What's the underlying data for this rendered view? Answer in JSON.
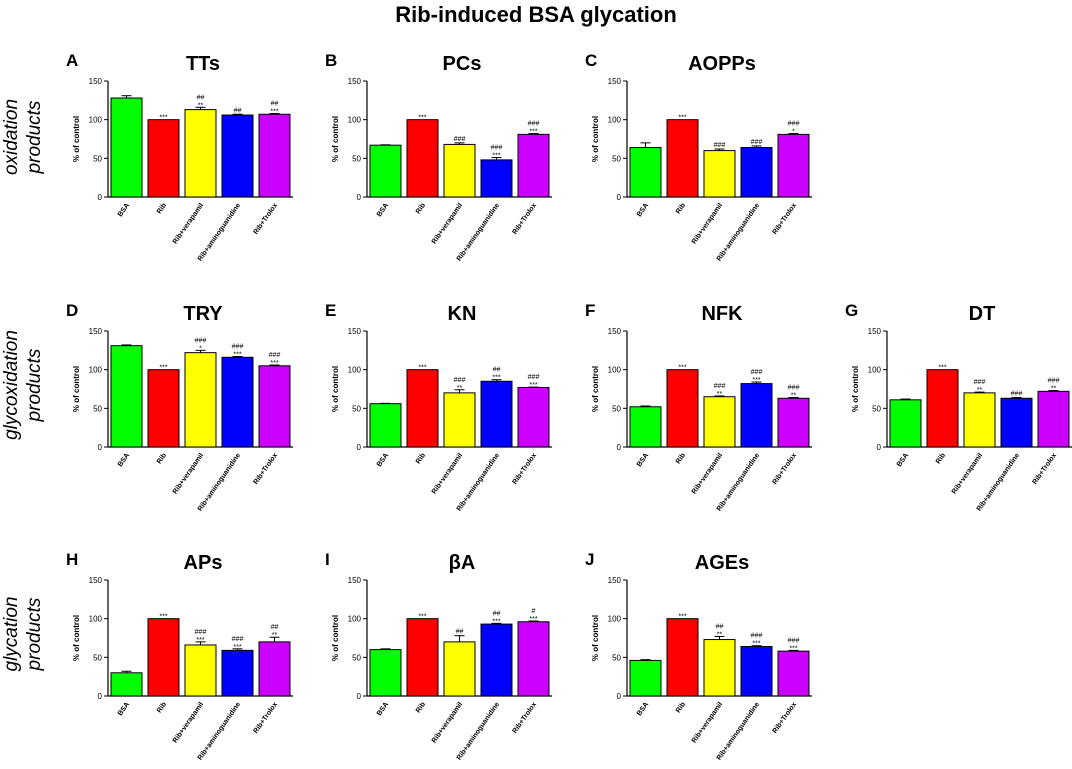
{
  "figure_title": "Rib-induced BSA glycation",
  "row_labels": [
    {
      "line1": "oxidation",
      "line2": "products"
    },
    {
      "line1": "glycoxidation",
      "line2": "products"
    },
    {
      "line1": "glycation",
      "line2": "products"
    }
  ],
  "colors": {
    "BSA": "#00ff00",
    "Rib": "#ff0000",
    "Rib+verapamil": "#ffff00",
    "Rib+aminoguanidine": "#0000ff",
    "Rib+Trolox": "#cc00ff"
  },
  "chart_data": [
    {
      "type": "bar",
      "letter": "A",
      "title": "TTs",
      "ylabel": "% of control",
      "ylim": [
        0,
        150
      ],
      "yticks": [
        0,
        50,
        100,
        150
      ],
      "categories": [
        "BSA",
        "Rib",
        "Rib+verapamil",
        "Rib+aminoguanidine",
        "Rib+Trolox"
      ],
      "values": [
        128,
        100,
        113,
        106,
        107
      ],
      "errors": [
        3,
        0,
        3,
        1,
        1
      ],
      "sig_top": [
        "",
        "",
        "##",
        "##",
        "##"
      ],
      "sig_bottom": [
        "",
        "***",
        "**",
        "",
        "***"
      ]
    },
    {
      "type": "bar",
      "letter": "B",
      "title": "PCs",
      "ylabel": "% of control",
      "ylim": [
        0,
        150
      ],
      "yticks": [
        0,
        50,
        100,
        150
      ],
      "categories": [
        "BSA",
        "Rib",
        "Rib+verapamil",
        "Rib+aminoguanidine",
        "Rib+Trolox"
      ],
      "values": [
        67,
        100,
        68,
        48,
        81
      ],
      "errors": [
        0.5,
        0,
        2,
        3,
        1
      ],
      "sig_top": [
        "",
        "",
        "###",
        "###",
        "###"
      ],
      "sig_bottom": [
        "",
        "***",
        "",
        "***",
        "***"
      ]
    },
    {
      "type": "bar",
      "letter": "C",
      "title": "AOPPs",
      "ylabel": "% of control",
      "ylim": [
        0,
        150
      ],
      "yticks": [
        0,
        50,
        100,
        150
      ],
      "categories": [
        "BSA",
        "Rib",
        "Rib+verapamil",
        "Rib+aminoguanidine",
        "Rib+Trolox"
      ],
      "values": [
        64,
        100,
        60,
        64,
        81
      ],
      "errors": [
        6,
        0,
        2,
        2,
        1
      ],
      "sig_top": [
        "",
        "",
        "###",
        "###",
        "###"
      ],
      "sig_bottom": [
        "",
        "***",
        "",
        "",
        "*"
      ]
    },
    {
      "type": "bar",
      "letter": "D",
      "title": "TRY",
      "ylabel": "% of control",
      "ylim": [
        0,
        150
      ],
      "yticks": [
        0,
        50,
        100,
        150
      ],
      "categories": [
        "BSA",
        "Rib",
        "Rib+verapamil",
        "Rib+aminoguanidine",
        "Rib+Trolox"
      ],
      "values": [
        131,
        100,
        122,
        116,
        105
      ],
      "errors": [
        1,
        0,
        3,
        1,
        1
      ],
      "sig_top": [
        "",
        "",
        "###",
        "###",
        "###"
      ],
      "sig_bottom": [
        "",
        "***",
        "*",
        "***",
        "***"
      ]
    },
    {
      "type": "bar",
      "letter": "E",
      "title": "KN",
      "ylabel": "% of control",
      "ylim": [
        0,
        150
      ],
      "yticks": [
        0,
        50,
        100,
        150
      ],
      "categories": [
        "BSA",
        "Rib",
        "Rib+verapamil",
        "Rib+aminoguanidine",
        "Rib+Trolox"
      ],
      "values": [
        56,
        100,
        70,
        85,
        77
      ],
      "errors": [
        0.5,
        0,
        4,
        2,
        0.5
      ],
      "sig_top": [
        "",
        "",
        "###",
        "##",
        "###"
      ],
      "sig_bottom": [
        "",
        "***",
        "**",
        "***",
        "***"
      ]
    },
    {
      "type": "bar",
      "letter": "F",
      "title": "NFK",
      "ylabel": "% of control",
      "ylim": [
        0,
        150
      ],
      "yticks": [
        0,
        50,
        100,
        150
      ],
      "categories": [
        "BSA",
        "Rib",
        "Rib+verapamil",
        "Rib+aminoguanidine",
        "Rib+Trolox"
      ],
      "values": [
        52,
        100,
        65,
        82,
        63
      ],
      "errors": [
        1,
        0,
        1,
        2,
        1
      ],
      "sig_top": [
        "",
        "",
        "###",
        "###",
        "###"
      ],
      "sig_bottom": [
        "",
        "***",
        "**",
        "***",
        "**"
      ]
    },
    {
      "type": "bar",
      "letter": "G",
      "title": "DT",
      "ylabel": "% of control",
      "ylim": [
        0,
        150
      ],
      "yticks": [
        0,
        50,
        100,
        150
      ],
      "categories": [
        "BSA",
        "Rib",
        "Rib+verapamil",
        "Rib+aminoguanidine",
        "Rib+Trolox"
      ],
      "values": [
        61,
        100,
        70,
        63,
        72
      ],
      "errors": [
        1,
        0,
        1,
        1,
        1
      ],
      "sig_top": [
        "",
        "",
        "###",
        "###",
        "###"
      ],
      "sig_bottom": [
        "",
        "***",
        "**",
        "",
        "**"
      ]
    },
    {
      "type": "bar",
      "letter": "H",
      "title": "APs",
      "ylabel": "% of control",
      "ylim": [
        0,
        150
      ],
      "yticks": [
        0,
        50,
        100,
        150
      ],
      "categories": [
        "BSA",
        "Rib",
        "Rib+verapamil",
        "Rib+aminoguanidine",
        "Rib+Trolox"
      ],
      "values": [
        30,
        100,
        66,
        59,
        70
      ],
      "errors": [
        2,
        0,
        4,
        2,
        6
      ],
      "sig_top": [
        "",
        "",
        "###",
        "###",
        "##"
      ],
      "sig_bottom": [
        "",
        "***",
        "***",
        "***",
        "**"
      ]
    },
    {
      "type": "bar",
      "letter": "I",
      "title": "βA",
      "ylabel": "% of control",
      "ylim": [
        0,
        150
      ],
      "yticks": [
        0,
        50,
        100,
        150
      ],
      "categories": [
        "BSA",
        "Rib",
        "Rib+verapamil",
        "Rib+aminoguanidine",
        "Rib+Trolox"
      ],
      "values": [
        60,
        100,
        70,
        93,
        96
      ],
      "errors": [
        1,
        0,
        8,
        1,
        1
      ],
      "sig_top": [
        "",
        "",
        "##",
        "##",
        "#"
      ],
      "sig_bottom": [
        "",
        "***",
        "",
        "***",
        "***"
      ]
    },
    {
      "type": "bar",
      "letter": "J",
      "title": "AGEs",
      "ylabel": "% of control",
      "ylim": [
        0,
        150
      ],
      "yticks": [
        0,
        50,
        100,
        150
      ],
      "categories": [
        "BSA",
        "Rib",
        "Rib+verapamil",
        "Rib+aminoguanidine",
        "Rib+Trolox"
      ],
      "values": [
        46,
        100,
        73,
        64,
        58
      ],
      "errors": [
        1,
        0,
        4,
        1,
        1
      ],
      "sig_top": [
        "",
        "",
        "##",
        "###",
        "###"
      ],
      "sig_bottom": [
        "",
        "***",
        "**",
        "***",
        "***"
      ]
    }
  ]
}
